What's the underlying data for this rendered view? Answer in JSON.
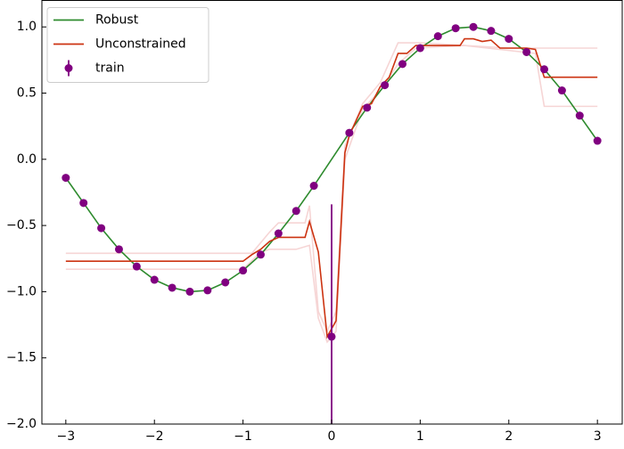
{
  "chart_data": {
    "type": "line",
    "series": [
      {
        "name": "Robust",
        "color": "#2e8b2e",
        "x": [
          -3,
          -2.8,
          -2.6,
          -2.4,
          -2.2,
          -2,
          -1.8,
          -1.6,
          -1.4,
          -1.2,
          -1,
          -0.8,
          -0.6,
          -0.4,
          -0.2,
          0,
          0.2,
          0.4,
          0.6,
          0.8,
          1,
          1.2,
          1.4,
          1.6,
          1.8,
          2,
          2.2,
          2.4,
          2.6,
          2.8,
          3
        ],
        "values": [
          -0.14,
          -0.33,
          -0.52,
          -0.68,
          -0.81,
          -0.91,
          -0.97,
          -1.0,
          -0.99,
          -0.93,
          -0.84,
          -0.72,
          -0.56,
          -0.39,
          -0.2,
          0,
          0.2,
          0.39,
          0.56,
          0.72,
          0.84,
          0.93,
          0.99,
          1.0,
          0.97,
          0.91,
          0.81,
          0.68,
          0.52,
          0.33,
          0.14
        ]
      },
      {
        "name": "Unconstrained",
        "color": "#cc3311",
        "x": [
          -3,
          -1,
          -0.9,
          -0.8,
          -0.7,
          -0.6,
          -0.3,
          -0.25,
          -0.15,
          -0.05,
          0.05,
          0.15,
          0.2,
          0.35,
          0.45,
          0.55,
          0.65,
          0.75,
          0.85,
          0.95,
          1.45,
          1.5,
          1.6,
          1.7,
          1.8,
          1.9,
          2.2,
          2.3,
          2.4,
          3
        ],
        "values": [
          -0.77,
          -0.77,
          -0.72,
          -0.68,
          -0.62,
          -0.59,
          -0.59,
          -0.47,
          -0.7,
          -1.34,
          -1.22,
          0.05,
          0.18,
          0.4,
          0.42,
          0.55,
          0.62,
          0.8,
          0.8,
          0.86,
          0.86,
          0.91,
          0.91,
          0.89,
          0.9,
          0.84,
          0.84,
          0.83,
          0.62,
          0.62
        ]
      },
      {
        "color": "#f6d5d5",
        "x": [
          -3,
          -0.9,
          -0.7,
          -0.6,
          -0.3,
          -0.25,
          -0.15,
          -0.05,
          0.05,
          0.15,
          0.35,
          0.55,
          0.75,
          1,
          2,
          3
        ],
        "values": [
          -0.71,
          -0.71,
          -0.55,
          -0.48,
          -0.48,
          -0.35,
          -1.15,
          -1.3,
          -1.15,
          0.1,
          0.42,
          0.58,
          0.88,
          0.88,
          0.84,
          0.84
        ]
      },
      {
        "color": "#f6d5d5",
        "x": [
          -3,
          -1,
          -0.8,
          -0.7,
          -0.4,
          -0.25,
          -0.15,
          -0.05,
          0.05,
          0.15,
          0.35,
          0.55,
          0.75,
          0.95,
          1.5,
          2.3,
          2.4,
          3
        ],
        "values": [
          -0.83,
          -0.83,
          -0.7,
          -0.68,
          -0.68,
          -0.65,
          -1.2,
          -1.38,
          -1.3,
          0,
          0.38,
          0.52,
          0.72,
          0.84,
          0.86,
          0.8,
          0.4,
          0.4
        ]
      }
    ],
    "train": {
      "name": "train",
      "color": "#800080",
      "x": [
        -3,
        -2.8,
        -2.6,
        -2.4,
        -2.2,
        -2,
        -1.8,
        -1.6,
        -1.4,
        -1.2,
        -1,
        -0.8,
        -0.6,
        -0.4,
        -0.2,
        0,
        0.2,
        0.4,
        0.6,
        0.8,
        1,
        1.2,
        1.4,
        1.6,
        1.8,
        2,
        2.2,
        2.4,
        2.6,
        2.8,
        3
      ],
      "values": [
        -0.14,
        -0.33,
        -0.52,
        -0.68,
        -0.81,
        -0.91,
        -0.97,
        -1.0,
        -0.99,
        -0.93,
        -0.84,
        -0.72,
        -0.56,
        -0.39,
        -0.2,
        -1.34,
        0.2,
        0.39,
        0.56,
        0.72,
        0.84,
        0.93,
        0.99,
        1.0,
        0.97,
        0.91,
        0.81,
        0.68,
        0.52,
        0.33,
        0.14
      ],
      "errors": [
        0,
        0,
        0,
        0,
        0,
        0,
        0,
        0,
        0,
        0,
        0,
        0,
        0,
        0,
        0,
        1.0,
        0,
        0,
        0,
        0,
        0,
        0,
        0,
        0,
        0,
        0,
        0,
        0,
        0,
        0,
        0
      ]
    },
    "xlim": [
      -3.27,
      3.28
    ],
    "ylim": [
      -2.0,
      1.2
    ],
    "xticks": [
      {
        "value": -3,
        "label": "−3"
      },
      {
        "value": -2,
        "label": "−2"
      },
      {
        "value": -1,
        "label": "−1"
      },
      0,
      1,
      2,
      3
    ],
    "yticks": [
      {
        "value": -2,
        "label": "−2.0"
      },
      {
        "value": -1.5,
        "label": "−1.5"
      },
      {
        "value": -1,
        "label": "−1.0"
      },
      {
        "value": -0.5,
        "label": "−0.5"
      },
      {
        "value": 0,
        "label": "0.0"
      },
      {
        "value": 0.5,
        "label": "0.5"
      },
      {
        "value": 1,
        "label": "1.0"
      }
    ],
    "grid": false,
    "legend": "upper left"
  }
}
